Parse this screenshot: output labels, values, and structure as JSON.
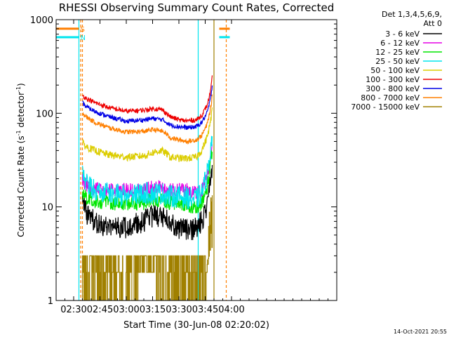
{
  "chart_data": {
    "type": "line",
    "title": "RHESSI Observing Summary Count Rates, Corrected",
    "xlabel": "Start Time (30-Jun-08 02:20:02)",
    "ylabel_main": "Corrected Count Rate (s",
    "ylabel_sup1": "-1",
    "ylabel_mid": " detector",
    "ylabel_sup2": "-1",
    "ylabel_end": ")",
    "y_scale": "log",
    "ylim": [
      1,
      1000
    ],
    "xlim": [
      140,
      300
    ],
    "x_unit": "minutes after 00:00 UT",
    "yticks": [
      {
        "v": 1,
        "label": "1"
      },
      {
        "v": 10,
        "label": "10"
      },
      {
        "v": 100,
        "label": "100"
      },
      {
        "v": 1000,
        "label": "1000"
      }
    ],
    "xticks": [
      {
        "v": 150,
        "label": "02:30"
      },
      {
        "v": 165,
        "label": "02:45"
      },
      {
        "v": 180,
        "label": "03:00"
      },
      {
        "v": 195,
        "label": "03:15"
      },
      {
        "v": 210,
        "label": "03:30"
      },
      {
        "v": 225,
        "label": "03:45"
      },
      {
        "v": 240,
        "label": "04:00"
      }
    ],
    "legend_header1": "Det 1,3,4,5,6,9,",
    "legend_header2": "Att 0",
    "legend_placement": "right",
    "timestamp": "14-Oct-2021 20:55",
    "flags": [
      {
        "label": "S",
        "color": "#ff7f00",
        "value": 800,
        "segments": [
          [
            140,
            153
          ],
          [
            233,
            239
          ]
        ]
      },
      {
        "label": "N",
        "color": "#00e5ee",
        "value": 650,
        "segments": [
          [
            140,
            153
          ],
          [
            233,
            239
          ]
        ]
      }
    ],
    "vlines": [
      {
        "x": 153,
        "color": "#00e5ee",
        "style": "solid"
      },
      {
        "x": 154,
        "color": "#ff7f00",
        "style": "dashed"
      },
      {
        "x": 155,
        "color": "#ff7f00",
        "style": "dashed"
      },
      {
        "x": 221,
        "color": "#00e5ee",
        "style": "solid"
      },
      {
        "x": 230,
        "color": "#a08000",
        "style": "solid"
      },
      {
        "x": 237,
        "color": "#ff7f00",
        "style": "dashed"
      }
    ],
    "x_range": [
      155,
      229
    ],
    "series": [
      {
        "name": "3 - 6 keV",
        "color": "#000000",
        "noise": 0.12,
        "x": [
          155,
          156,
          158,
          162,
          170,
          180,
          190,
          195,
          200,
          205,
          210,
          215,
          220,
          223,
          226,
          228,
          229
        ],
        "y": [
          14,
          10,
          8,
          7,
          6,
          6,
          7,
          8,
          8,
          7,
          6,
          5.5,
          6,
          7,
          10,
          20,
          25
        ]
      },
      {
        "name": "6 - 12 keV",
        "color": "#e600e6",
        "noise": 0.08,
        "x": [
          155,
          156,
          160,
          170,
          180,
          190,
          195,
          200,
          205,
          210,
          215,
          220,
          223,
          226,
          228,
          229
        ],
        "y": [
          19,
          18,
          16,
          15,
          15,
          15,
          16,
          16,
          15,
          15,
          15,
          14,
          15,
          20,
          35,
          45
        ]
      },
      {
        "name": "12 - 25 keV",
        "color": "#00e600",
        "noise": 0.08,
        "x": [
          155,
          156,
          160,
          170,
          180,
          190,
          195,
          200,
          205,
          210,
          215,
          220,
          223,
          226,
          228,
          229
        ],
        "y": [
          15,
          13,
          12,
          11,
          11,
          11,
          12,
          12,
          11,
          11,
          10.5,
          10,
          11,
          15,
          30,
          40
        ]
      },
      {
        "name": "25 - 50 keV",
        "color": "#00e5ee",
        "noise": 0.12,
        "x": [
          155,
          156,
          158,
          162,
          170,
          180,
          190,
          195,
          200,
          205,
          210,
          215,
          220,
          223,
          226,
          228,
          229
        ],
        "y": [
          24,
          20,
          17,
          15,
          14,
          13,
          14,
          14,
          14,
          13,
          13,
          12.5,
          12,
          14,
          22,
          40,
          60
        ]
      },
      {
        "name": "50 - 100 keV",
        "color": "#dccd00",
        "noise": 0.04,
        "x": [
          155,
          157,
          162,
          170,
          180,
          190,
          195,
          200,
          203,
          205,
          210,
          215,
          220,
          223,
          226,
          228,
          229
        ],
        "y": [
          48,
          44,
          40,
          36,
          34,
          35,
          38,
          40,
          37,
          34,
          33,
          33,
          34,
          40,
          55,
          80,
          110
        ]
      },
      {
        "name": "100 - 300 keV",
        "color": "#ee0000",
        "noise": 0.025,
        "x": [
          155,
          157,
          162,
          170,
          180,
          190,
          195,
          200,
          203,
          205,
          210,
          215,
          220,
          223,
          226,
          228,
          229
        ],
        "y": [
          155,
          145,
          130,
          115,
          105,
          108,
          112,
          110,
          100,
          92,
          85,
          83,
          85,
          95,
          120,
          170,
          240
        ]
      },
      {
        "name": "300 - 800 keV",
        "color": "#0000e6",
        "noise": 0.025,
        "x": [
          155,
          157,
          162,
          170,
          180,
          190,
          195,
          200,
          203,
          205,
          210,
          215,
          220,
          223,
          226,
          228,
          229
        ],
        "y": [
          130,
          118,
          105,
          92,
          82,
          85,
          88,
          86,
          80,
          75,
          72,
          70,
          72,
          80,
          100,
          140,
          200
        ]
      },
      {
        "name": "800 - 7000 keV",
        "color": "#ff7f00",
        "noise": 0.025,
        "x": [
          155,
          157,
          162,
          170,
          180,
          190,
          195,
          200,
          203,
          205,
          210,
          215,
          220,
          223,
          226,
          228,
          229
        ],
        "y": [
          100,
          92,
          80,
          70,
          63,
          64,
          67,
          65,
          60,
          55,
          52,
          50,
          52,
          58,
          75,
          110,
          150
        ]
      },
      {
        "name": "7000 - 15000 keV",
        "color": "#a08000",
        "quantized": true,
        "x": [
          155,
          229
        ],
        "y": [
          1,
          1
        ]
      }
    ]
  }
}
